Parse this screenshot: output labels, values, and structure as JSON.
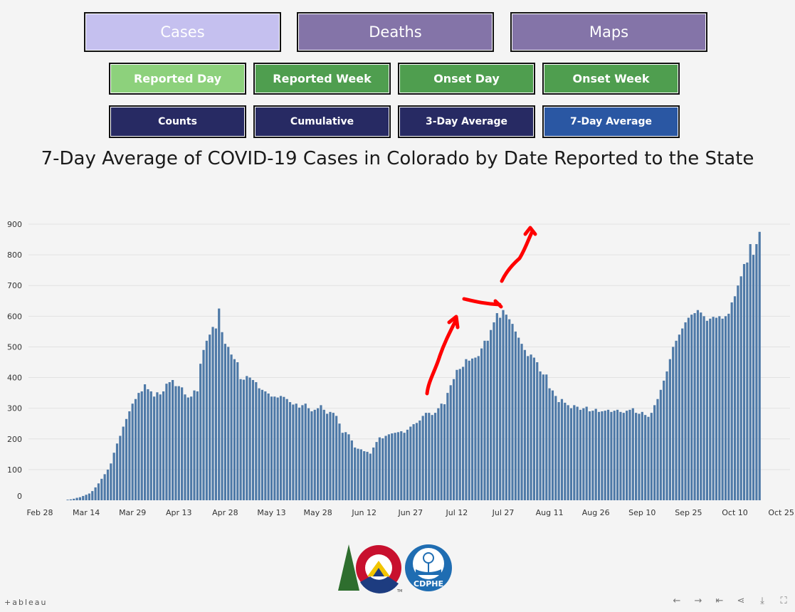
{
  "nav": {
    "primary": [
      {
        "label": "Cases",
        "color": "#c5c0ef",
        "text_color": "#ffffff"
      },
      {
        "label": "Deaths",
        "color": "#8474a8",
        "text_color": "#ffffff"
      },
      {
        "label": "Maps",
        "color": "#8474a8",
        "text_color": "#ffffff"
      }
    ],
    "date_basis": [
      {
        "label": "Reported Day",
        "color": "#8dd17c"
      },
      {
        "label": "Reported Week",
        "color": "#4f9e4f"
      },
      {
        "label": "Onset Day",
        "color": "#4f9e4f"
      },
      {
        "label": "Onset Week",
        "color": "#4f9e4f"
      }
    ],
    "measure": [
      {
        "label": "Counts",
        "color": "#272a63"
      },
      {
        "label": "Cumulative",
        "color": "#272a63"
      },
      {
        "label": "3-Day Average",
        "color": "#272a63"
      },
      {
        "label": "7-Day Average",
        "color": "#2a57a3"
      }
    ]
  },
  "chart_data": {
    "type": "bar",
    "title": "7-Day Average of COVID-19 Cases in Colorado by Date Reported to the State",
    "xlabel": "",
    "ylabel": "",
    "ylim": [
      0,
      900
    ],
    "yticks": [
      0,
      100,
      200,
      300,
      400,
      500,
      600,
      700,
      800,
      900
    ],
    "x_start": "Feb 28",
    "x_end": "Oct 25",
    "xtick_labels": [
      "Feb 28",
      "Mar 14",
      "Mar 29",
      "Apr 13",
      "Apr 28",
      "May 13",
      "May 28",
      "Jun 12",
      "Jun 27",
      "Jul 12",
      "Jul 27",
      "Aug 11",
      "Aug 26",
      "Sep 10",
      "Sep 25",
      "Oct 10",
      "Oct 25"
    ],
    "first_bar_date": "Mar 8",
    "bar_color": "#4e79a7",
    "grid": true,
    "annotation_color": "#ff0000",
    "values": [
      2,
      3,
      5,
      8,
      10,
      14,
      18,
      22,
      30,
      42,
      55,
      70,
      85,
      100,
      120,
      155,
      185,
      210,
      240,
      265,
      290,
      315,
      330,
      350,
      355,
      378,
      362,
      355,
      338,
      352,
      345,
      355,
      380,
      385,
      392,
      372,
      372,
      368,
      345,
      335,
      338,
      358,
      355,
      445,
      490,
      520,
      540,
      565,
      560,
      625,
      548,
      510,
      500,
      475,
      460,
      450,
      395,
      393,
      405,
      400,
      392,
      385,
      365,
      360,
      355,
      348,
      338,
      338,
      335,
      340,
      337,
      330,
      320,
      312,
      315,
      302,
      310,
      315,
      300,
      290,
      295,
      300,
      310,
      295,
      282,
      288,
      285,
      275,
      250,
      220,
      222,
      215,
      195,
      172,
      168,
      166,
      160,
      158,
      152,
      172,
      190,
      205,
      202,
      210,
      215,
      218,
      220,
      222,
      225,
      220,
      230,
      240,
      248,
      252,
      260,
      275,
      285,
      285,
      278,
      285,
      300,
      315,
      313,
      350,
      375,
      395,
      425,
      428,
      435,
      460,
      455,
      462,
      465,
      470,
      495,
      520,
      520,
      555,
      580,
      610,
      595,
      620,
      605,
      590,
      575,
      550,
      530,
      510,
      490,
      470,
      475,
      465,
      450,
      420,
      410,
      410,
      365,
      358,
      340,
      320,
      330,
      318,
      310,
      300,
      310,
      305,
      295,
      300,
      305,
      290,
      292,
      298,
      288,
      290,
      292,
      295,
      288,
      292,
      295,
      288,
      285,
      292,
      295,
      300,
      285,
      282,
      288,
      278,
      272,
      285,
      310,
      330,
      360,
      390,
      420,
      460,
      500,
      520,
      540,
      560,
      580,
      595,
      605,
      610,
      620,
      612,
      600,
      585,
      592,
      598,
      595,
      600,
      592,
      600,
      608,
      645,
      665,
      700,
      730,
      770,
      775,
      835,
      800,
      835,
      875
    ]
  },
  "branding": {
    "tableau": "+ableau",
    "cdphe_text": "CDPHE",
    "tm": "TM"
  },
  "toolbar": {
    "icons": [
      "undo-icon",
      "redo-icon",
      "revert-icon",
      "share-icon",
      "download-icon",
      "fullscreen-icon"
    ],
    "glyphs": [
      "←",
      "→",
      "⇤",
      "⋖",
      "⤓",
      "⛶"
    ]
  }
}
